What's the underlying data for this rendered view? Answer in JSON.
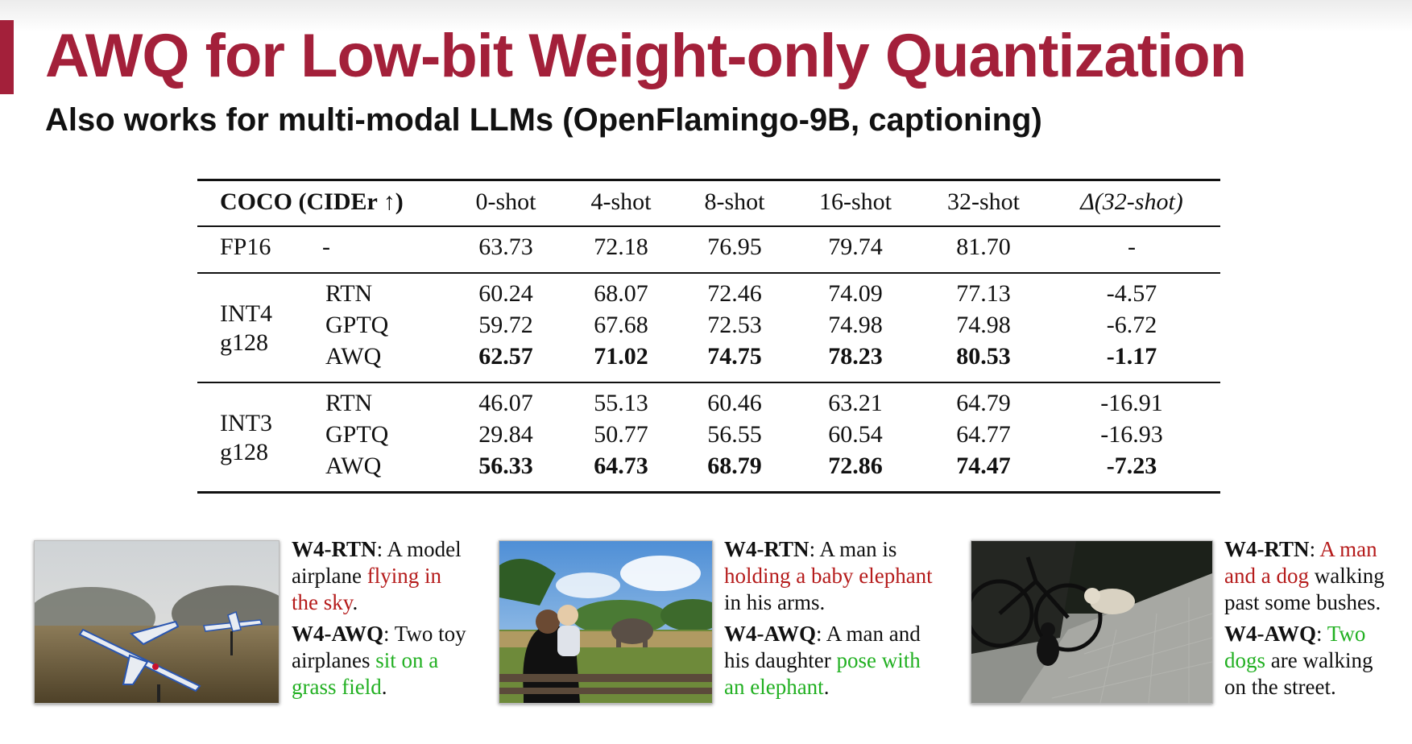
{
  "slide": {
    "title": "AWQ for Low-bit Weight-only Quantization",
    "subtitle": "Also works for multi-modal LLMs (OpenFlamingo-9B, captioning)",
    "accent_color": "#a3203a"
  },
  "table": {
    "header": {
      "metric": "COCO (CIDEr ↑)",
      "shots": [
        "0-shot",
        "4-shot",
        "8-shot",
        "16-shot",
        "32-shot"
      ],
      "delta": "Δ(32-shot)"
    },
    "fp16": {
      "label": "FP16",
      "method": "-",
      "values": [
        "63.73",
        "72.18",
        "76.95",
        "79.74",
        "81.70"
      ],
      "delta": "-"
    },
    "groups": [
      {
        "label_line1": "INT4",
        "label_line2": "g128",
        "rows": [
          {
            "method": "RTN",
            "values": [
              "60.24",
              "68.07",
              "72.46",
              "74.09",
              "77.13"
            ],
            "delta": "-4.57"
          },
          {
            "method": "GPTQ",
            "values": [
              "59.72",
              "67.68",
              "72.53",
              "74.98",
              "74.98"
            ],
            "delta": "-6.72"
          },
          {
            "method": "AWQ",
            "values": [
              "62.57",
              "71.02",
              "74.75",
              "78.23",
              "80.53"
            ],
            "delta": "-1.17"
          }
        ]
      },
      {
        "label_line1": "INT3",
        "label_line2": "g128",
        "rows": [
          {
            "method": "RTN",
            "values": [
              "46.07",
              "55.13",
              "60.46",
              "63.21",
              "64.79"
            ],
            "delta": "-16.91"
          },
          {
            "method": "GPTQ",
            "values": [
              "29.84",
              "50.77",
              "56.55",
              "60.54",
              "64.77"
            ],
            "delta": "-16.93"
          },
          {
            "method": "AWQ",
            "values": [
              "56.33",
              "64.73",
              "68.79",
              "72.86",
              "74.47"
            ],
            "delta": "-7.23"
          }
        ]
      }
    ]
  },
  "examples": [
    {
      "image": "toy-airplanes-on-grass",
      "rtn_label": "W4-RTN",
      "rtn_line1_plain": ": A model",
      "rtn_line2_plain": "airplane ",
      "rtn_line2_red": "flying in",
      "rtn_line3_red": "the sky",
      "rtn_line3_plain": ".",
      "awq_label": "W4-AWQ",
      "awq_line1_plain": ": Two toy",
      "awq_line2_plain": "airplanes ",
      "awq_line2_green": "sit on a",
      "awq_line3_green": "grass field",
      "awq_line3_plain": "."
    },
    {
      "image": "man-with-baby-and-elephant",
      "rtn_label": "W4-RTN",
      "rtn_line1_plain": ": A man is",
      "rtn_line2_red": "holding a baby elephant",
      "rtn_line3_plain": "in his arms.",
      "awq_label": "W4-AWQ",
      "awq_line1_plain": ": A man and",
      "awq_line2_plain": "his daughter ",
      "awq_line2_green": "pose with",
      "awq_line3_green": "an elephant",
      "awq_line3_plain": "."
    },
    {
      "image": "dog-and-cat-near-bicycle",
      "rtn_label": "W4-RTN",
      "rtn_line1_plain": ": ",
      "rtn_line1_red": "A man",
      "rtn_line2_red": "and a dog",
      "rtn_line2_plain": " walking",
      "rtn_line3_plain": "past some bushes.",
      "awq_label": "W4-AWQ",
      "awq_line1_plain": ": ",
      "awq_line1_green": "Two",
      "awq_line2_green": "dogs",
      "awq_line2_plain": " are walking",
      "awq_line3_plain": "on the street."
    }
  ],
  "colors": {
    "rtn_error": "#b51b1b",
    "awq_correct": "#22b022"
  }
}
